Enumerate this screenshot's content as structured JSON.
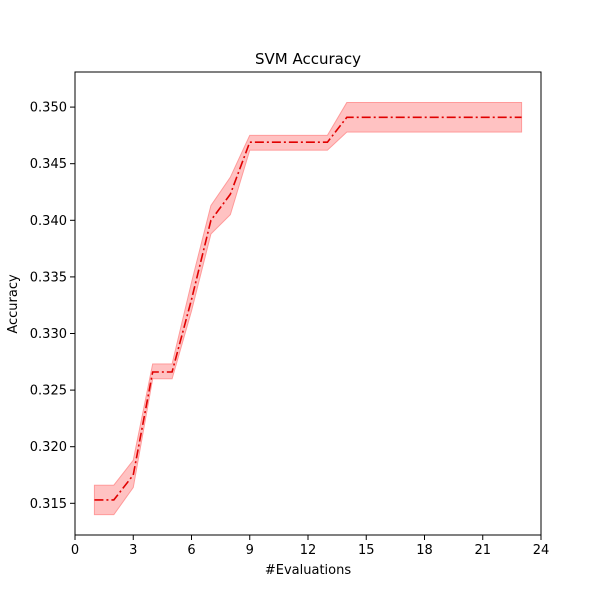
{
  "chart_data": {
    "type": "line",
    "title": "SVM Accuracy",
    "xlabel": "#Evaluations",
    "ylabel": "Accuracy",
    "xlim": [
      0,
      24
    ],
    "ylim": [
      0.3122,
      0.3531
    ],
    "xticks": [
      0,
      3,
      6,
      9,
      12,
      15,
      18,
      21,
      24
    ],
    "yticks": [
      0.315,
      0.32,
      0.325,
      0.33,
      0.335,
      0.34,
      0.345,
      0.35
    ],
    "grid": false,
    "legend": "none",
    "line_color": "#e00000",
    "band_color": "#ff9a9a",
    "series": [
      {
        "x": [
          1,
          2,
          3,
          4,
          5,
          6,
          7,
          8,
          9,
          10,
          11,
          12,
          13,
          14,
          15,
          16,
          17,
          18,
          19,
          20,
          21,
          22,
          23
        ],
        "values": [
          0.3153,
          0.3153,
          0.3175,
          0.3266,
          0.3266,
          0.333,
          0.34,
          0.3423,
          0.3469,
          0.3469,
          0.3469,
          0.3469,
          0.3469,
          0.3491,
          0.3491,
          0.3491,
          0.3491,
          0.3491,
          0.3491,
          0.3491,
          0.3491,
          0.3491,
          0.3491
        ],
        "lower": [
          0.314,
          0.314,
          0.3164,
          0.326,
          0.326,
          0.332,
          0.3388,
          0.3405,
          0.3462,
          0.3462,
          0.3462,
          0.3462,
          0.3462,
          0.3478,
          0.3478,
          0.3478,
          0.3478,
          0.3478,
          0.3478,
          0.3478,
          0.3478,
          0.3478,
          0.3478
        ],
        "upper": [
          0.3166,
          0.3166,
          0.3188,
          0.3273,
          0.3273,
          0.3345,
          0.3413,
          0.3438,
          0.3475,
          0.3475,
          0.3475,
          0.3475,
          0.3475,
          0.3504,
          0.3504,
          0.3504,
          0.3504,
          0.3504,
          0.3504,
          0.3504,
          0.3504,
          0.3504,
          0.3504
        ]
      }
    ]
  }
}
